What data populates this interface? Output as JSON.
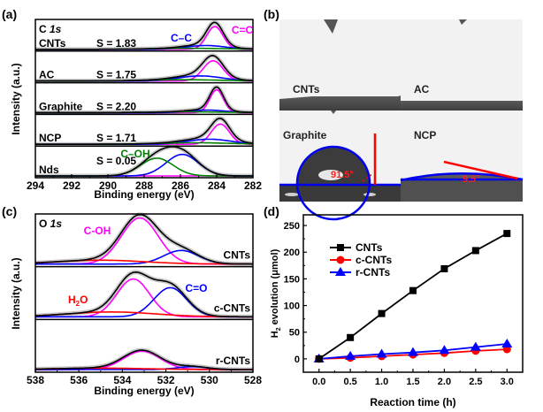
{
  "chart_data": [
    {
      "panel": "(a)",
      "type": "line",
      "title": "C 1s",
      "xlabel": "Binding energy (eV)",
      "ylabel": "Intensity (a.u.)",
      "xlim": [
        294,
        282
      ],
      "xticks": [
        "294",
        "292",
        "290",
        "288",
        "286",
        "284",
        "282"
      ],
      "xtick_values": [
        294,
        292,
        290,
        288,
        286,
        284,
        282
      ],
      "components": [
        {
          "name": "C=C",
          "color": "#ff00ff"
        },
        {
          "name": "C–C",
          "color": "#0000ff"
        },
        {
          "name": "C–OH",
          "color": "#008000"
        }
      ],
      "samples": [
        {
          "name": "CNTs",
          "s_label": "S = 1.83",
          "peaks": [
            {
              "comp": "C=C",
              "center": 284.1,
              "amp": 0.9,
              "width": 0.45
            },
            {
              "comp": "C–C",
              "center": 284.6,
              "amp": 0.15,
              "width": 1.1
            },
            {
              "comp": "C–OH",
              "center": 285.5,
              "amp": 0.04,
              "width": 2.0
            }
          ]
        },
        {
          "name": "AC",
          "s_label": "S = 1.75",
          "peaks": [
            {
              "comp": "C=C",
              "center": 284.2,
              "amp": 0.8,
              "width": 0.55
            },
            {
              "comp": "C–C",
              "center": 284.9,
              "amp": 0.2,
              "width": 1.2
            },
            {
              "comp": "C–OH",
              "center": 285.8,
              "amp": 0.05,
              "width": 2.0
            }
          ]
        },
        {
          "name": "Graphite",
          "s_label": "S = 2.20",
          "peaks": [
            {
              "comp": "C=C",
              "center": 284.0,
              "amp": 0.9,
              "width": 0.38
            },
            {
              "comp": "C–C",
              "center": 284.5,
              "amp": 0.1,
              "width": 1.0
            },
            {
              "comp": "C–OH",
              "center": 285.5,
              "amp": 0.03,
              "width": 2.0
            }
          ]
        },
        {
          "name": "NCP",
          "s_label": "S = 1.71",
          "peaks": [
            {
              "comp": "C=C",
              "center": 283.8,
              "amp": 0.8,
              "width": 0.5
            },
            {
              "comp": "C–C",
              "center": 284.4,
              "amp": 0.2,
              "width": 1.2
            },
            {
              "comp": "C–OH",
              "center": 285.2,
              "amp": 0.06,
              "width": 2.0
            }
          ]
        },
        {
          "name": "Nds",
          "s_label": "S = 0.05",
          "peaks": [
            {
              "comp": "C=C",
              "center": 284.0,
              "amp": 0.0,
              "width": 0.5
            },
            {
              "comp": "C–C",
              "center": 285.9,
              "amp": 0.85,
              "width": 0.9
            },
            {
              "comp": "C–OH",
              "center": 287.3,
              "amp": 0.7,
              "width": 0.9
            }
          ]
        }
      ],
      "annotations": [
        "C=C",
        "C–C",
        "C–OH"
      ]
    },
    {
      "panel": "(b)",
      "type": "image",
      "labels": [
        "CNTs",
        "AC",
        "Graphite",
        "NCP"
      ],
      "contact_angles": [
        {
          "sample": "Graphite",
          "angle": "91.5°"
        },
        {
          "sample": "NCP",
          "angle": "9.5°"
        }
      ]
    },
    {
      "panel": "(c)",
      "type": "line",
      "title": "O 1s",
      "xlabel": "Binding energy (eV)",
      "ylabel": "Intensity (a.u.)",
      "xlim": [
        538,
        528
      ],
      "xticks": [
        "538",
        "536",
        "534",
        "532",
        "530",
        "528"
      ],
      "xtick_values": [
        538,
        536,
        534,
        532,
        530,
        528
      ],
      "components": [
        {
          "name": "C-OH",
          "color": "#ff00ff"
        },
        {
          "name": "C=O",
          "color": "#0000ff"
        },
        {
          "name": "H2O",
          "color": "#ff0000"
        }
      ],
      "samples": [
        {
          "name": "CNTs",
          "peaks": [
            {
              "comp": "C-OH",
              "center": 533.2,
              "amp": 0.95,
              "width": 0.85
            },
            {
              "comp": "C=O",
              "center": 531.3,
              "amp": 0.28,
              "width": 0.8
            },
            {
              "comp": "H2O",
              "center": 535.0,
              "amp": 0.08,
              "width": 2.0
            }
          ]
        },
        {
          "name": "c-CNTs",
          "peaks": [
            {
              "comp": "C-OH",
              "center": 533.5,
              "amp": 0.78,
              "width": 0.75
            },
            {
              "comp": "C=O",
              "center": 531.8,
              "amp": 0.6,
              "width": 0.75
            },
            {
              "comp": "H2O",
              "center": 534.5,
              "amp": 0.1,
              "width": 2.0
            }
          ]
        },
        {
          "name": "r-CNTs",
          "peaks": [
            {
              "comp": "C-OH",
              "center": 533.1,
              "amp": 0.38,
              "width": 0.85
            },
            {
              "comp": "C=O",
              "center": 530.8,
              "amp": 0.06,
              "width": 0.7
            },
            {
              "comp": "H2O",
              "center": 535.0,
              "amp": 0.03,
              "width": 2.0
            }
          ]
        }
      ],
      "annotations": [
        "C-OH",
        "C=O",
        "H2O"
      ]
    },
    {
      "panel": "(d)",
      "type": "line",
      "xlabel": "Reaction time (h)",
      "ylabel": "H2 evolution (μmol)",
      "x": [
        0.0,
        0.5,
        1.0,
        1.5,
        2.0,
        2.5,
        3.0
      ],
      "xlim": [
        -0.25,
        3.25
      ],
      "ylim": [
        -25,
        270
      ],
      "xticks": [
        "0.0",
        "0.5",
        "1.0",
        "1.5",
        "2.0",
        "2.5",
        "3.0"
      ],
      "yticks": [
        "0",
        "50",
        "100",
        "150",
        "200",
        "250"
      ],
      "legend_position": "top-left",
      "series": [
        {
          "name": "CNTs",
          "color": "#000000",
          "marker": "square",
          "values": [
            0,
            40,
            85,
            128,
            169,
            203,
            235
          ]
        },
        {
          "name": "c-CNTs",
          "color": "#ff0000",
          "marker": "circle",
          "values": [
            0,
            2,
            5,
            8,
            11,
            15,
            18
          ]
        },
        {
          "name": "r-CNTs",
          "color": "#0000ff",
          "marker": "triangle",
          "values": [
            0,
            5,
            9,
            12,
            16,
            22,
            28
          ]
        }
      ]
    }
  ],
  "labels": {
    "a": "(a)",
    "b": "(b)",
    "c": "(c)",
    "d": "(d)",
    "c1s_c": "C ",
    "c1s_s": "1s",
    "o1s_o": "O ",
    "o1s_s": "1s",
    "a_ann_cc_double": "C=C",
    "a_ann_cc_single": "C–C",
    "a_ann_coh": "C–OH",
    "c_ann_coh": "C-OH",
    "c_ann_co": "C=O",
    "c_ann_h": "H",
    "c_ann_2": "2",
    "c_ann_o": "O",
    "a_ylabel": "Intensity (a.u.)",
    "a_xlabel": "Binding energy (eV)",
    "c_ylabel": "Intensity (a.u.)",
    "c_xlabel": "Binding energy (eV)",
    "d_xlabel": "Reaction time (h)",
    "d_ylabel_h": "H",
    "d_ylabel_2": "2",
    "d_ylabel_rest": " evolution (μmol)",
    "b_cnts": "CNTs",
    "b_ac": "AC",
    "b_graphite": "Graphite",
    "b_ncp": "NCP",
    "b_angle1": "91.5°",
    "b_angle2": "9.5°"
  }
}
